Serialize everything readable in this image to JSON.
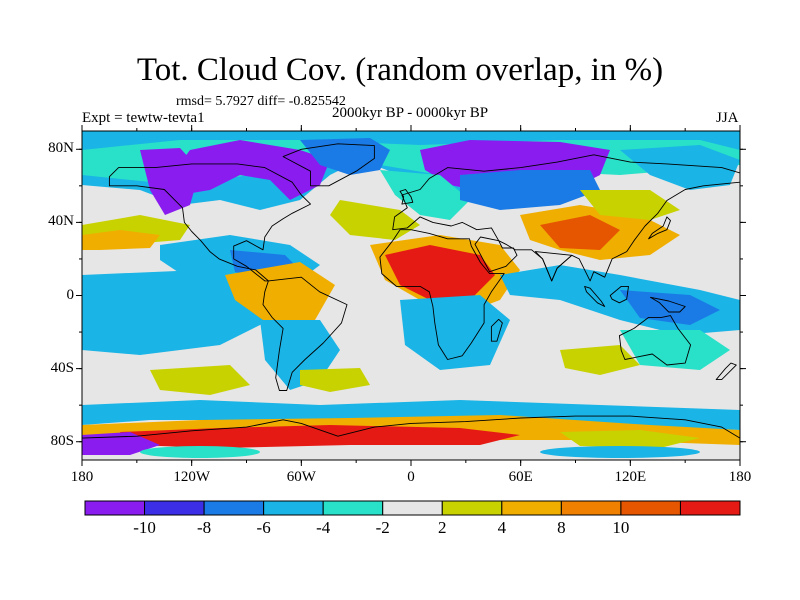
{
  "title": "Tot. Cloud Cov. (random overlap, in %)",
  "stats": "rmsd= 5.7927 diff= -0.825542",
  "left_label": "Expt = tewtw-tevta1",
  "center_label": "2000kyr BP - 0000kyr BP",
  "right_label": "JJA",
  "lat_labels": [
    {
      "text": "80N",
      "lat": 80
    },
    {
      "text": "40N",
      "lat": 40
    },
    {
      "text": "0",
      "lat": 0
    },
    {
      "text": "40S",
      "lat": -40
    },
    {
      "text": "80S",
      "lat": -80
    }
  ],
  "lon_labels": [
    {
      "text": "180",
      "lon": -180
    },
    {
      "text": "120W",
      "lon": -120
    },
    {
      "text": "60W",
      "lon": -60
    },
    {
      "text": "0",
      "lon": 0
    },
    {
      "text": "60E",
      "lon": 60
    },
    {
      "text": "120E",
      "lon": 120
    },
    {
      "text": "180",
      "lon": 180
    }
  ],
  "colorbar": {
    "labels": [
      "-10",
      "-8",
      "-6",
      "-4",
      "-2",
      "2",
      "4",
      "8",
      "10"
    ],
    "colors": [
      "#8a1cf0",
      "#3c2ee6",
      "#1a7ae6",
      "#1ab4e6",
      "#29e0c8",
      "#e6e6e6",
      "#c8d200",
      "#f0ae00",
      "#f08000",
      "#e65500",
      "#e61a14"
    ]
  },
  "map_colors": {
    "neutral": "#e6e6e6",
    "purple": "#8a1cf0",
    "blue_dark": "#3c2ee6",
    "blue": "#1a7ae6",
    "cyan": "#1ab4e6",
    "teal": "#29e0c8",
    "yellow": "#c8d200",
    "orange": "#f0ae00",
    "orange_dark": "#f08000",
    "red_orange": "#e65500",
    "red": "#e61a14"
  }
}
